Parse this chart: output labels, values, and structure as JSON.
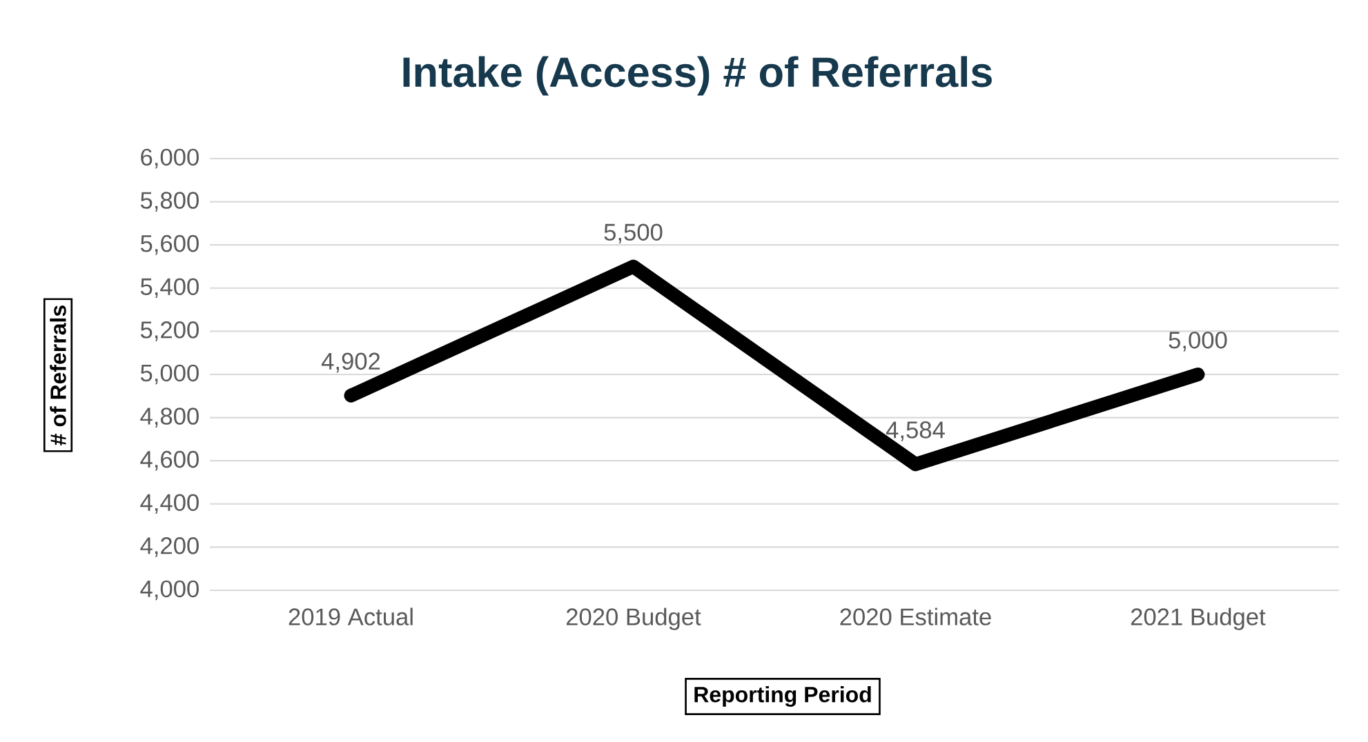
{
  "chart_data": {
    "type": "line",
    "title": "Intake (Access) # of Referrals",
    "xlabel": "Reporting Period",
    "ylabel": "# of Referrals",
    "categories": [
      "2019 Actual",
      "2020 Budget",
      "2020 Estimate",
      "2021 Budget"
    ],
    "series": [
      {
        "color": "#000000",
        "values": [
          4902,
          5500,
          4584,
          5000
        ],
        "value_labels": [
          "4,902",
          "5,500",
          "4,584",
          "5,000"
        ]
      }
    ],
    "ylim": [
      4000,
      6000
    ],
    "yticks": [
      {
        "value": 4000,
        "label": "4,000"
      },
      {
        "value": 4200,
        "label": "4,200"
      },
      {
        "value": 4400,
        "label": "4,400"
      },
      {
        "value": 4600,
        "label": "4,600"
      },
      {
        "value": 4800,
        "label": "4,800"
      },
      {
        "value": 5000,
        "label": "5,000"
      },
      {
        "value": 5200,
        "label": "5,200"
      },
      {
        "value": 5400,
        "label": "5,400"
      },
      {
        "value": 5600,
        "label": "5,600"
      },
      {
        "value": 5800,
        "label": "5,800"
      },
      {
        "value": 6000,
        "label": "6,000"
      }
    ],
    "grid": "y",
    "marker": "none",
    "line_style": "solid"
  }
}
